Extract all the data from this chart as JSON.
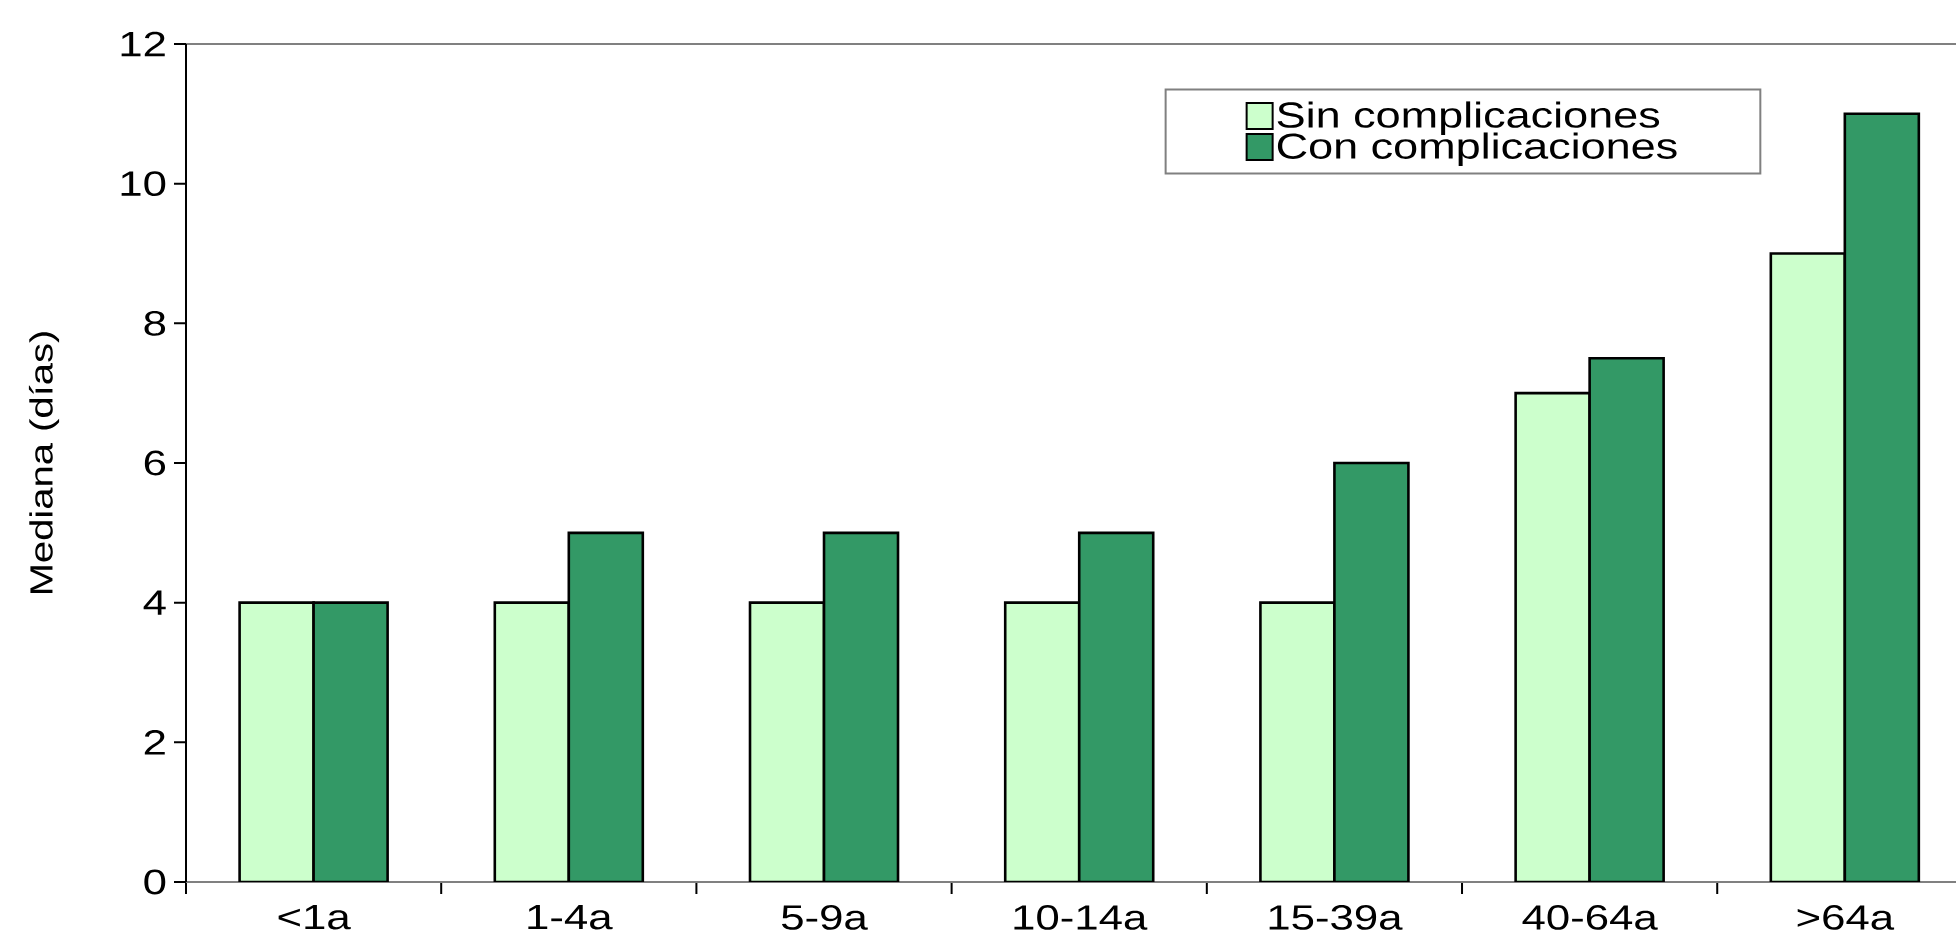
{
  "chart_data": {
    "type": "bar",
    "ylabel": "Mediana (días)",
    "categories": [
      "<1a",
      "1-4a",
      "5-9a",
      "10-14a",
      "15-39a",
      "40-64a",
      ">64a"
    ],
    "series": [
      {
        "name": "Sin complicaciones",
        "color": "#ccffcc",
        "values": [
          4,
          4,
          4,
          4,
          4,
          7,
          9
        ]
      },
      {
        "name": "Con complicaciones",
        "color": "#339966",
        "values": [
          4,
          5,
          5,
          5,
          6,
          7.5,
          11
        ]
      }
    ],
    "ylim": [
      0,
      12
    ],
    "yticks": [
      0,
      2,
      4,
      6,
      8,
      10,
      12
    ],
    "legend": "top right"
  }
}
